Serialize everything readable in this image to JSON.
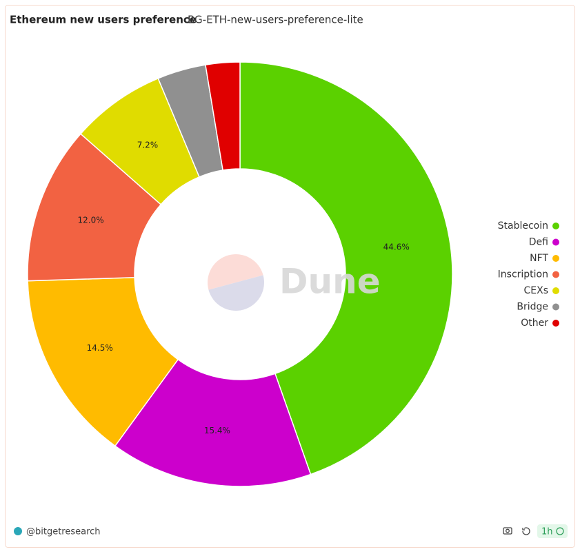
{
  "chart_data": {
    "type": "pie",
    "title": "Ethereum new users preference",
    "subtitle": "BG-ETH-new-users-preference-lite",
    "categories": [
      "Stablecoin",
      "Defi",
      "NFT",
      "Inscription",
      "CEXs",
      "Bridge",
      "Other"
    ],
    "values": [
      44.6,
      15.4,
      14.5,
      12.0,
      7.2,
      3.7,
      2.6
    ],
    "value_labels": [
      "44.6%",
      "15.4%",
      "14.5%",
      "12.0%",
      "7.2%",
      null,
      null
    ],
    "colors": [
      "#5bd100",
      "#cc00cc",
      "#ffbb00",
      "#f26242",
      "#e0dc00",
      "#909090",
      "#e00000"
    ],
    "donut": true,
    "legend": "right",
    "watermark": "Dune"
  },
  "footer": {
    "author": "@bitgetresearch",
    "refresh": "1h"
  }
}
